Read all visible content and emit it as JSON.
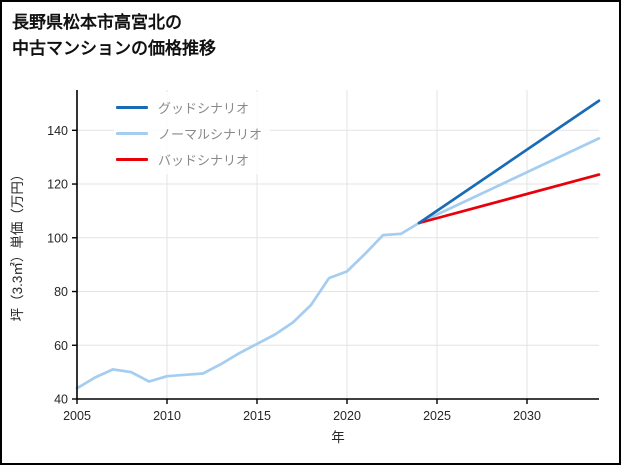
{
  "header": {
    "title_lines": [
      "長野県松本市高宮北の",
      "中古マンションの価格推移"
    ]
  },
  "chart_data": {
    "type": "line",
    "title": "長野県松本市高宮北の中古マンションの価格推移",
    "xlabel": "年",
    "ylabel": "坪（3.3㎡）単価（万円）",
    "xlim": [
      2005,
      2034
    ],
    "ylim": [
      40,
      155
    ],
    "x_ticks": [
      2005,
      2010,
      2015,
      2020,
      2025,
      2030
    ],
    "y_ticks": [
      40,
      60,
      80,
      100,
      120,
      140
    ],
    "grid": true,
    "grid_color": "#e3e3e3",
    "axis_color": "#000000",
    "legend_position": "upper-left",
    "legend_text_color": "#8a8a8a",
    "series": [
      {
        "id": "good-scenario",
        "name": "グッドシナリオ",
        "color": "#1a6bb5",
        "z": 3,
        "x": [
          2024,
          2034
        ],
        "values": [
          105.5,
          151
        ]
      },
      {
        "id": "normal-scenario",
        "name": "ノーマルシナリオ",
        "color": "#a5cdf0",
        "z": 1,
        "x": [
          2005,
          2006,
          2007,
          2008,
          2009,
          2010,
          2011,
          2012,
          2013,
          2014,
          2015,
          2016,
          2017,
          2018,
          2019,
          2020,
          2021,
          2022,
          2023,
          2024,
          2034
        ],
        "values": [
          44,
          48,
          51,
          50,
          46.5,
          48.5,
          49,
          49.5,
          53,
          57,
          60.5,
          64,
          68.5,
          75,
          85,
          87.5,
          94,
          101,
          101.5,
          105.5,
          137
        ]
      },
      {
        "id": "bad-scenario",
        "name": "バッドシナリオ",
        "color": "#e8000b",
        "z": 2,
        "x": [
          2024,
          2034
        ],
        "values": [
          105.5,
          123.5
        ]
      }
    ]
  }
}
